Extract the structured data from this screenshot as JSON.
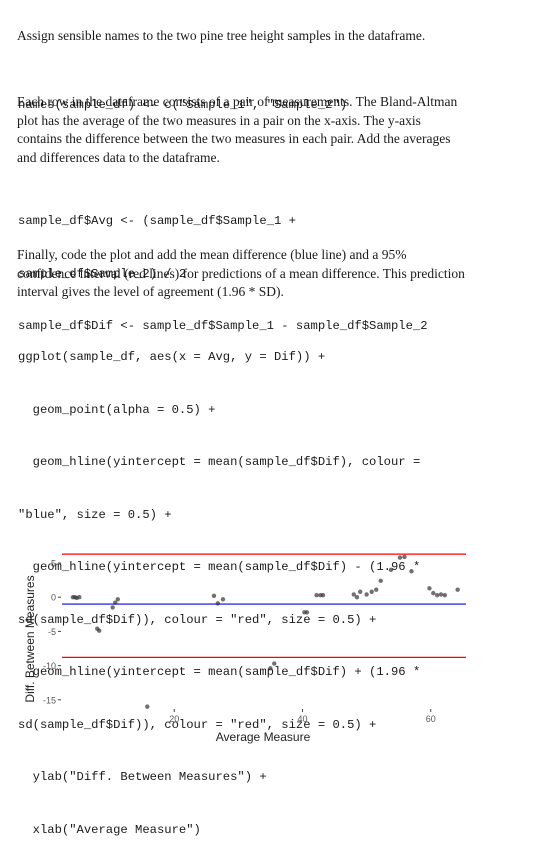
{
  "paragraphs": [
    "Assign sensible names to the two pine tree height samples in the dataframe.",
    "Each row in the dataframe consists of a pair of measurements. The Bland-Altman plot has the average of the two measures in a pair on the x-axis. The y-axis contains the difference between the two measures in each pair. Add the averages and differences data to the dataframe.",
    "Finally, code the plot and add the mean difference (blue line) and a 95% confidence interval (red lines) for predictions of a mean difference. This prediction interval gives the level of agreement (1.96 * SD)."
  ],
  "code_blocks": [
    [
      "names(sample_df) <- c(\"Sample_1\", \"Sample_2\")"
    ],
    [
      "sample_df$Avg <- (sample_df$Sample_1 +",
      "sample_df$Sample_2) / 2",
      "sample_df$Dif <- sample_df$Sample_1 - sample_df$Sample_2"
    ],
    [
      "ggplot(sample_df, aes(x = Avg, y = Dif)) +",
      "  geom_point(alpha = 0.5) +",
      "  geom_hline(yintercept = mean(sample_df$Dif), colour =",
      "\"blue\", size = 0.5) +",
      "  geom_hline(yintercept = mean(sample_df$Dif) - (1.96 *",
      "sd(sample_df$Dif)), colour = \"red\", size = 0.5) +",
      "  geom_hline(yintercept = mean(sample_df$Dif) + (1.96 *",
      "sd(sample_df$Dif)), colour = \"red\", size = 0.5) +",
      "  ylab(\"Diff. Between Measures\") +",
      "  xlab(\"Average Measure\")"
    ]
  ],
  "chart_data": {
    "type": "scatter",
    "xlabel": "Average Measure",
    "ylabel": "Diff. Between Measures",
    "xlim": [
      2.5,
      65.5
    ],
    "ylim": [
      -16.2,
      7.2
    ],
    "xticks": [
      20,
      40,
      60
    ],
    "yticks": [
      -15,
      -10,
      -5,
      0,
      5
    ],
    "grid": false,
    "mean_line": {
      "y": -1.0,
      "color": "#0000ff"
    },
    "limit_lines": [
      {
        "y": 6.3,
        "color": "#ff0000"
      },
      {
        "y": -8.8,
        "color": "#ff0000"
      }
    ],
    "point_color": "#333333",
    "points": [
      {
        "x": 4.2,
        "y": 0.0
      },
      {
        "x": 4.5,
        "y": 0.0
      },
      {
        "x": 4.8,
        "y": -0.1
      },
      {
        "x": 5.2,
        "y": 0.0
      },
      {
        "x": 8.0,
        "y": -4.6
      },
      {
        "x": 8.3,
        "y": -4.9
      },
      {
        "x": 10.4,
        "y": -1.5
      },
      {
        "x": 10.8,
        "y": -0.8
      },
      {
        "x": 11.2,
        "y": -0.3
      },
      {
        "x": 15.8,
        "y": -16.0
      },
      {
        "x": 26.2,
        "y": 0.2
      },
      {
        "x": 26.8,
        "y": -0.9
      },
      {
        "x": 27.6,
        "y": -0.3
      },
      {
        "x": 35.0,
        "y": -10.4
      },
      {
        "x": 35.6,
        "y": -9.7
      },
      {
        "x": 40.3,
        "y": -2.2
      },
      {
        "x": 40.7,
        "y": -2.2
      },
      {
        "x": 42.2,
        "y": 0.3
      },
      {
        "x": 42.8,
        "y": 0.3
      },
      {
        "x": 43.2,
        "y": 0.3
      },
      {
        "x": 48.0,
        "y": 0.4
      },
      {
        "x": 48.5,
        "y": 0.0
      },
      {
        "x": 49.0,
        "y": 0.8
      },
      {
        "x": 50.0,
        "y": 0.4
      },
      {
        "x": 50.8,
        "y": 0.8
      },
      {
        "x": 51.5,
        "y": 1.1
      },
      {
        "x": 52.2,
        "y": 2.4
      },
      {
        "x": 53.8,
        "y": 4.0
      },
      {
        "x": 55.2,
        "y": 5.8
      },
      {
        "x": 55.9,
        "y": 5.9
      },
      {
        "x": 57.0,
        "y": 3.8
      },
      {
        "x": 59.8,
        "y": 1.3
      },
      {
        "x": 60.4,
        "y": 0.6
      },
      {
        "x": 61.0,
        "y": 0.3
      },
      {
        "x": 61.6,
        "y": 0.4
      },
      {
        "x": 62.2,
        "y": 0.3
      },
      {
        "x": 64.2,
        "y": 1.1
      }
    ]
  }
}
